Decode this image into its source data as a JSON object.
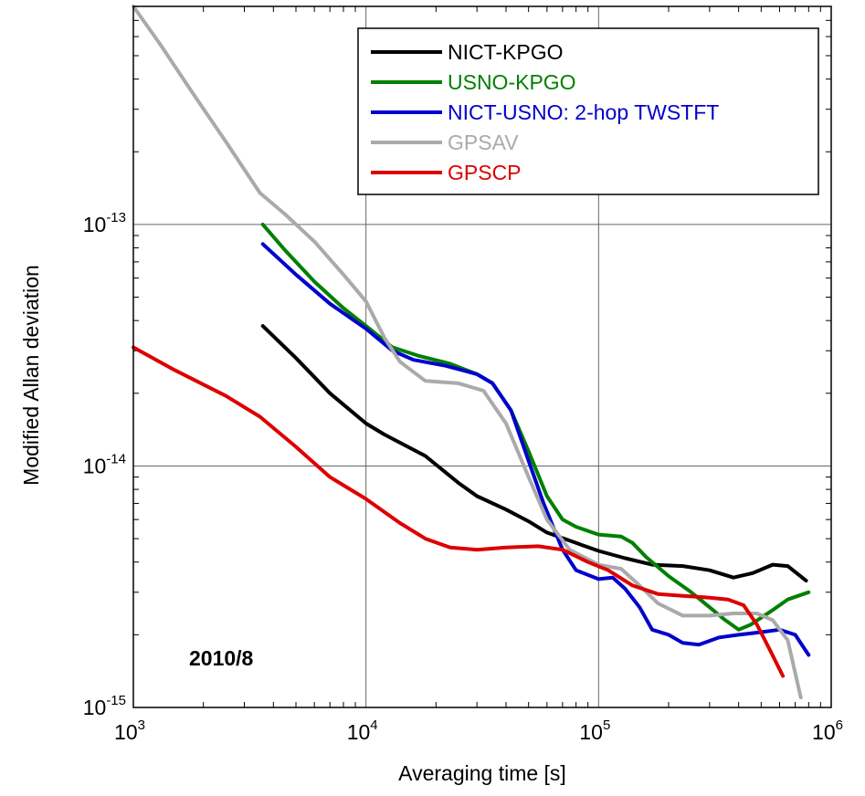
{
  "chart_data": {
    "type": "line",
    "title": "",
    "xlabel": "Averaging time [s]",
    "ylabel": "Modified Allan deviation",
    "xscale": "log",
    "yscale": "log",
    "xlim": [
      1000,
      1000000
    ],
    "ylim": [
      1e-15,
      8e-13
    ],
    "grid": true,
    "legend_position": "top-right",
    "annotation": "2010/8",
    "x_ticks": [
      {
        "base": "10",
        "exp": "3",
        "value": 1000
      },
      {
        "base": "10",
        "exp": "4",
        "value": 10000
      },
      {
        "base": "10",
        "exp": "5",
        "value": 100000
      },
      {
        "base": "10",
        "exp": "6",
        "value": 1000000
      }
    ],
    "y_ticks": [
      {
        "base": "10",
        "exp": "-15",
        "value": 1e-15
      },
      {
        "base": "10",
        "exp": "-14",
        "value": 1e-14
      },
      {
        "base": "10",
        "exp": "-13",
        "value": 1e-13
      }
    ],
    "series": [
      {
        "name": "NICT-KPGO",
        "color": "#000000",
        "points": [
          [
            3600,
            3.8e-14
          ],
          [
            5000,
            2.8e-14
          ],
          [
            7000,
            2e-14
          ],
          [
            10000,
            1.5e-14
          ],
          [
            12000,
            1.35e-14
          ],
          [
            18000,
            1.1e-14
          ],
          [
            25000,
            8.5e-15
          ],
          [
            30000,
            7.5e-15
          ],
          [
            40000,
            6.6e-15
          ],
          [
            50000,
            5.9e-15
          ],
          [
            60000,
            5.3e-15
          ],
          [
            80000,
            4.8e-15
          ],
          [
            100000,
            4.45e-15
          ],
          [
            130000,
            4.15e-15
          ],
          [
            170000,
            3.9e-15
          ],
          [
            230000,
            3.85e-15
          ],
          [
            300000,
            3.7e-15
          ],
          [
            380000,
            3.45e-15
          ],
          [
            460000,
            3.6e-15
          ],
          [
            560000,
            3.9e-15
          ],
          [
            650000,
            3.85e-15
          ],
          [
            780000,
            3.35e-15
          ]
        ]
      },
      {
        "name": "USNO-KPGO",
        "color": "#008000",
        "points": [
          [
            3600,
            1e-13
          ],
          [
            4500,
            7.8e-14
          ],
          [
            6000,
            5.8e-14
          ],
          [
            8000,
            4.5e-14
          ],
          [
            10000,
            3.8e-14
          ],
          [
            13000,
            3.1e-14
          ],
          [
            17000,
            2.85e-14
          ],
          [
            23000,
            2.65e-14
          ],
          [
            30000,
            2.4e-14
          ],
          [
            35000,
            2.2e-14
          ],
          [
            42000,
            1.7e-14
          ],
          [
            50000,
            1.15e-14
          ],
          [
            60000,
            7.5e-15
          ],
          [
            70000,
            6e-15
          ],
          [
            80000,
            5.6e-15
          ],
          [
            100000,
            5.2e-15
          ],
          [
            125000,
            5.1e-15
          ],
          [
            140000,
            4.8e-15
          ],
          [
            160000,
            4.2e-15
          ],
          [
            200000,
            3.5e-15
          ],
          [
            250000,
            3e-15
          ],
          [
            300000,
            2.6e-15
          ],
          [
            350000,
            2.3e-15
          ],
          [
            400000,
            2.1e-15
          ],
          [
            450000,
            2.2e-15
          ],
          [
            550000,
            2.5e-15
          ],
          [
            650000,
            2.8e-15
          ],
          [
            800000,
            3e-15
          ]
        ]
      },
      {
        "name": "NICT-USNO: 2-hop TWSTFT",
        "color": "#0000cc",
        "points": [
          [
            3600,
            8.3e-14
          ],
          [
            5000,
            6.2e-14
          ],
          [
            7000,
            4.7e-14
          ],
          [
            10000,
            3.7e-14
          ],
          [
            13000,
            3e-14
          ],
          [
            16000,
            2.75e-14
          ],
          [
            22000,
            2.6e-14
          ],
          [
            30000,
            2.4e-14
          ],
          [
            35000,
            2.2e-14
          ],
          [
            42000,
            1.7e-14
          ],
          [
            50000,
            1.05e-14
          ],
          [
            58000,
            7e-15
          ],
          [
            70000,
            4.5e-15
          ],
          [
            80000,
            3.7e-15
          ],
          [
            100000,
            3.4e-15
          ],
          [
            115000,
            3.45e-15
          ],
          [
            130000,
            3.1e-15
          ],
          [
            150000,
            2.6e-15
          ],
          [
            170000,
            2.1e-15
          ],
          [
            200000,
            2e-15
          ],
          [
            230000,
            1.85e-15
          ],
          [
            270000,
            1.82e-15
          ],
          [
            330000,
            1.95e-15
          ],
          [
            400000,
            2e-15
          ],
          [
            500000,
            2.05e-15
          ],
          [
            600000,
            2.1e-15
          ],
          [
            700000,
            2e-15
          ],
          [
            800000,
            1.65e-15
          ]
        ]
      },
      {
        "name": "GPSAV",
        "color": "#aaaaaa",
        "points": [
          [
            1000,
            8e-13
          ],
          [
            1300,
            5.6e-13
          ],
          [
            1800,
            3.5e-13
          ],
          [
            2500,
            2.2e-13
          ],
          [
            3500,
            1.35e-13
          ],
          [
            4500,
            1.1e-13
          ],
          [
            6000,
            8.5e-14
          ],
          [
            8000,
            6.2e-14
          ],
          [
            10000,
            4.8e-14
          ],
          [
            12000,
            3.4e-14
          ],
          [
            14000,
            2.7e-14
          ],
          [
            18000,
            2.25e-14
          ],
          [
            25000,
            2.2e-14
          ],
          [
            32000,
            2.05e-14
          ],
          [
            40000,
            1.5e-14
          ],
          [
            50000,
            9e-15
          ],
          [
            60000,
            6e-15
          ],
          [
            75000,
            4.5e-15
          ],
          [
            100000,
            3.9e-15
          ],
          [
            125000,
            3.75e-15
          ],
          [
            150000,
            3.2e-15
          ],
          [
            180000,
            2.7e-15
          ],
          [
            230000,
            2.4e-15
          ],
          [
            300000,
            2.4e-15
          ],
          [
            380000,
            2.45e-15
          ],
          [
            480000,
            2.45e-15
          ],
          [
            560000,
            2.3e-15
          ],
          [
            650000,
            1.9e-15
          ],
          [
            740000,
            1.1e-15
          ]
        ]
      },
      {
        "name": "GPSCP",
        "color": "#dd0000",
        "points": [
          [
            1000,
            3.1e-14
          ],
          [
            1500,
            2.5e-14
          ],
          [
            2500,
            1.95e-14
          ],
          [
            3500,
            1.6e-14
          ],
          [
            5000,
            1.2e-14
          ],
          [
            7000,
            9e-15
          ],
          [
            10000,
            7.3e-15
          ],
          [
            14000,
            5.8e-15
          ],
          [
            18000,
            5e-15
          ],
          [
            23000,
            4.6e-15
          ],
          [
            30000,
            4.5e-15
          ],
          [
            40000,
            4.6e-15
          ],
          [
            55000,
            4.65e-15
          ],
          [
            70000,
            4.5e-15
          ],
          [
            90000,
            4e-15
          ],
          [
            110000,
            3.7e-15
          ],
          [
            140000,
            3.2e-15
          ],
          [
            180000,
            2.95e-15
          ],
          [
            230000,
            2.9e-15
          ],
          [
            300000,
            2.85e-15
          ],
          [
            360000,
            2.8e-15
          ],
          [
            420000,
            2.65e-15
          ],
          [
            480000,
            2.2e-15
          ],
          [
            550000,
            1.7e-15
          ],
          [
            620000,
            1.35e-15
          ]
        ]
      }
    ]
  }
}
